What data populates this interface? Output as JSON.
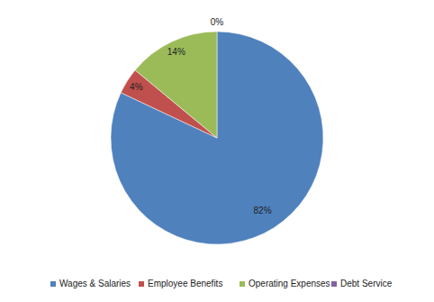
{
  "chart_data": {
    "type": "pie",
    "categories": [
      "Wages & Salaries",
      "Employee Benefits",
      "Operating Expenses",
      "Debt Service"
    ],
    "values": [
      82,
      4,
      14,
      0
    ],
    "colors": [
      "#4f81bd",
      "#c0504d",
      "#9bbb59",
      "#8064a2"
    ],
    "data_labels": true,
    "value_labels": [
      "82%",
      "4%",
      "14%",
      "0%"
    ],
    "legend": "bottom"
  }
}
